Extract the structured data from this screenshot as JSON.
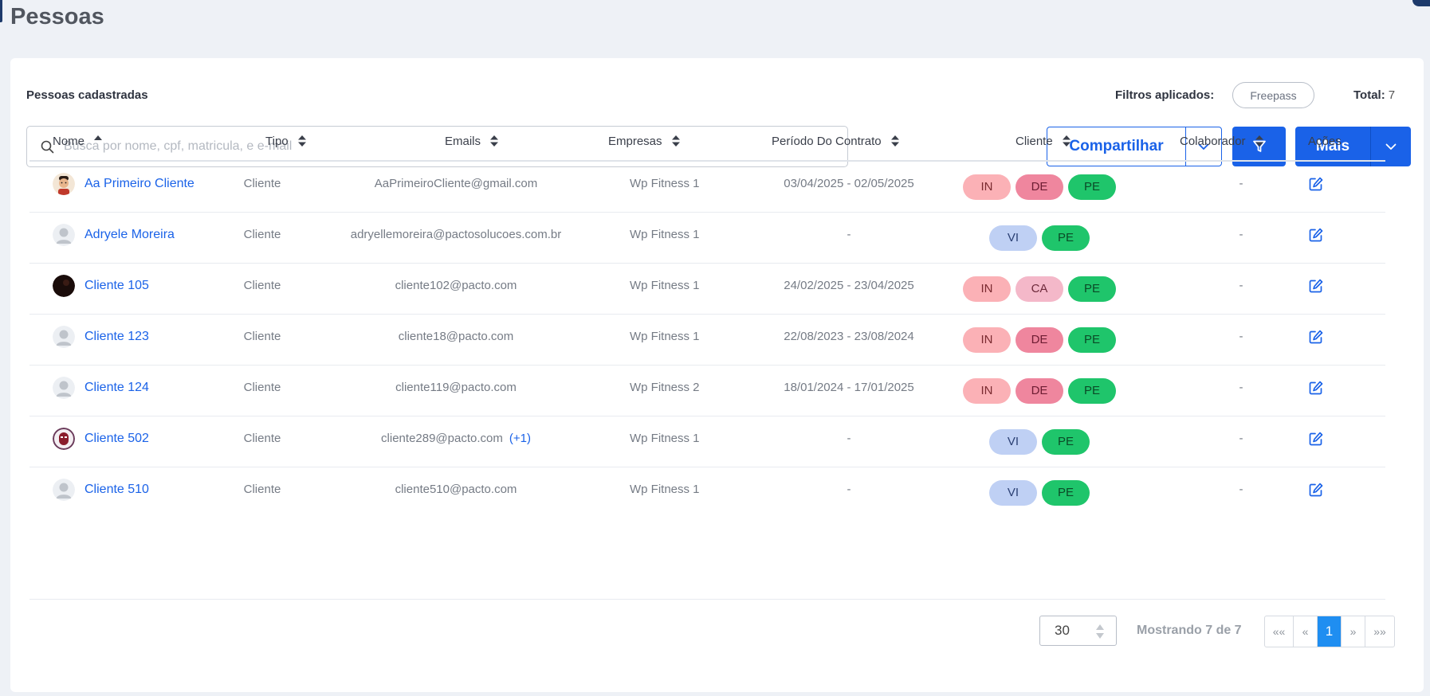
{
  "page_title": "Pessoas",
  "card": {
    "title": "Pessoas cadastradas",
    "filters_label": "Filtros aplicados:",
    "filter_chip": "Freepass",
    "total_label": "Total:",
    "total_value": "7"
  },
  "search": {
    "placeholder": "Busca por nome, cpf, matricula, e e-mail",
    "value": ""
  },
  "toolbar": {
    "share_label": "Compartilhar",
    "more_label": "Mais"
  },
  "columns": {
    "nome": "Nome",
    "tipo": "Tipo",
    "emails": "Emails",
    "empresas": "Empresas",
    "periodo": "Período Do Contrato",
    "cliente": "Cliente",
    "colaborador": "Colaborador",
    "acoes": "Ações"
  },
  "rows": [
    {
      "nome": "Aa Primeiro Cliente",
      "avatar": "cartoon-avatar",
      "tipo": "Cliente",
      "email": "AaPrimeiroCliente@gmail.com",
      "email_extra": "",
      "empresa": "Wp Fitness 1",
      "periodo": "03/04/2025 - 02/05/2025",
      "tags": [
        "IN",
        "DE",
        "PE"
      ],
      "colaborador": "-"
    },
    {
      "nome": "Adryele Moreira",
      "avatar": "default-avatar",
      "tipo": "Cliente",
      "email": "adryellemoreira@pactosolucoes.com.br",
      "email_extra": "",
      "empresa": "Wp Fitness 1",
      "periodo": "-",
      "tags": [
        "VI",
        "PE"
      ],
      "colaborador": "-"
    },
    {
      "nome": "Cliente 105",
      "avatar": "dark-photo-avatar",
      "tipo": "Cliente",
      "email": "cliente102@pacto.com",
      "email_extra": "",
      "empresa": "Wp Fitness 1",
      "periodo": "24/02/2025 - 23/04/2025",
      "tags": [
        "IN",
        "CA",
        "PE"
      ],
      "colaborador": "-"
    },
    {
      "nome": "Cliente 123",
      "avatar": "default-avatar",
      "tipo": "Cliente",
      "email": "cliente18@pacto.com",
      "email_extra": "",
      "empresa": "Wp Fitness 1",
      "periodo": "22/08/2023 - 23/08/2024",
      "tags": [
        "IN",
        "DE",
        "PE"
      ],
      "colaborador": "-"
    },
    {
      "nome": "Cliente 124",
      "avatar": "default-avatar",
      "tipo": "Cliente",
      "email": "cliente119@pacto.com",
      "email_extra": "",
      "empresa": "Wp Fitness 2",
      "periodo": "18/01/2024 - 17/01/2025",
      "tags": [
        "IN",
        "DE",
        "PE"
      ],
      "colaborador": "-"
    },
    {
      "nome": "Cliente 502",
      "avatar": "mask-avatar",
      "tipo": "Cliente",
      "email": "cliente289@pacto.com",
      "email_extra": "(+1)",
      "empresa": "Wp Fitness 1",
      "periodo": "-",
      "tags": [
        "VI",
        "PE"
      ],
      "colaborador": "-"
    },
    {
      "nome": "Cliente 510",
      "avatar": "default-avatar",
      "tipo": "Cliente",
      "email": "cliente510@pacto.com",
      "email_extra": "",
      "empresa": "Wp Fitness 1",
      "periodo": "-",
      "tags": [
        "VI",
        "PE"
      ],
      "colaborador": "-"
    }
  ],
  "pagination": {
    "page_size": "30",
    "showing": "Mostrando 7 de 7",
    "first": "««",
    "prev": "«",
    "current": "1",
    "next": "»",
    "last": "»»"
  },
  "colors": {
    "primary": "#1a62e8",
    "tag_IN": "#fbb1b6",
    "tag_DE": "#ef869e",
    "tag_PE": "#1fc56b",
    "tag_VI": "#bfd0f4",
    "tag_CA": "#f4b8c9",
    "pager_active": "#1f8ef1"
  }
}
